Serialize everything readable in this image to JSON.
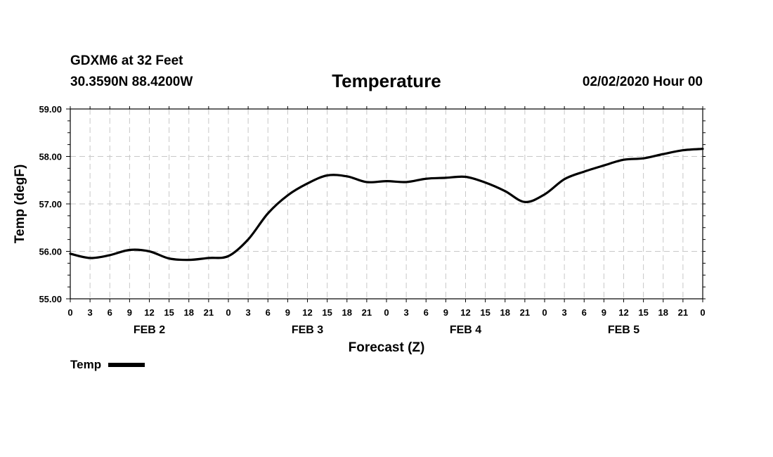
{
  "header": {
    "station": "GDXM6 at 32 Feet",
    "coords": "30.3590N 88.4200W",
    "title": "Temperature",
    "run_time": "02/02/2020 Hour 00"
  },
  "chart_data": {
    "type": "line",
    "title": "Temperature",
    "xlabel": "Forecast (Z)",
    "ylabel": "Temp (degF)",
    "ylim": [
      55.0,
      59.0
    ],
    "xlim": [
      0,
      96
    ],
    "y_ticks": [
      "55.00",
      "56.00",
      "57.00",
      "58.00",
      "59.00"
    ],
    "x_ticks": [
      "0",
      "3",
      "6",
      "9",
      "12",
      "15",
      "18",
      "21",
      "0",
      "3",
      "6",
      "9",
      "12",
      "15",
      "18",
      "21",
      "0",
      "3",
      "6",
      "9",
      "12",
      "15",
      "18",
      "21",
      "0",
      "3",
      "6",
      "9",
      "12",
      "15",
      "18",
      "21",
      "0"
    ],
    "day_labels": [
      "FEB 2",
      "FEB 3",
      "FEB 4",
      "FEB 5"
    ],
    "grid": true,
    "legend": "bottom-left",
    "series": [
      {
        "name": "Temp",
        "color": "#000000",
        "x": [
          0,
          3,
          6,
          9,
          12,
          15,
          18,
          21,
          24,
          27,
          30,
          33,
          36,
          39,
          42,
          45,
          48,
          51,
          54,
          57,
          60,
          63,
          66,
          69,
          72,
          75,
          78,
          81,
          84,
          87,
          90,
          93,
          96
        ],
        "values": [
          55.95,
          55.86,
          55.92,
          56.03,
          56.0,
          55.85,
          55.82,
          55.86,
          55.9,
          56.25,
          56.8,
          57.18,
          57.43,
          57.6,
          57.58,
          57.46,
          57.48,
          57.46,
          57.53,
          57.55,
          57.57,
          57.45,
          57.27,
          57.04,
          57.2,
          57.52,
          57.68,
          57.81,
          57.93,
          57.96,
          58.05,
          58.13,
          58.16
        ]
      }
    ]
  },
  "legend": {
    "label": "Temp"
  }
}
